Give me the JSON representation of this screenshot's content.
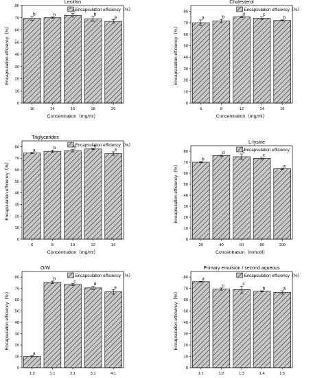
{
  "figure": {
    "colors": {
      "bar_fill": "#c9c9c9",
      "hatch": "#4d4d4d",
      "axis": "#000000"
    },
    "legend_label": "Encapsulation efficiency（%）"
  },
  "chart_data": [
    {
      "type": "bar",
      "title": "Lecithin",
      "xlabel": "Concentration（mg/ml）",
      "ylabel": "Encapsulation efficiency（%）",
      "categories": [
        "10",
        "14",
        "16",
        "18",
        "20"
      ],
      "values": [
        69.5,
        70,
        72,
        69,
        67
      ],
      "errors": [
        1.5,
        0.5,
        1.5,
        2,
        1.5
      ],
      "labels": [
        "b",
        "b",
        "c",
        "b",
        "a"
      ],
      "ylim": [
        0,
        80
      ],
      "yticks": [
        0,
        10,
        20,
        30,
        40,
        50,
        60,
        70,
        80
      ],
      "legend": "Encapsulation efficiency（%）"
    },
    {
      "type": "bar",
      "title": "Cholesterol",
      "xlabel": "Concentration（mg/ml）",
      "ylabel": "Encapsulation efficiency（%）",
      "categories": [
        "6",
        "8",
        "12",
        "14",
        "16"
      ],
      "values": [
        70,
        71.5,
        75,
        74,
        72
      ],
      "errors": [
        2.5,
        1.5,
        0.5,
        1,
        0.5
      ],
      "labels": [
        "a",
        "b",
        "d",
        "c",
        "b"
      ],
      "ylim": [
        0,
        85
      ],
      "yticks": [
        0,
        10,
        20,
        30,
        40,
        50,
        60,
        70,
        80
      ],
      "legend": "Encapsulation efficiency（%）"
    },
    {
      "type": "bar",
      "title": "Triglycerides",
      "xlabel": "Concentration（mg/ml）",
      "ylabel": "Encapsulation efficiency（%）",
      "categories": [
        "6",
        "8",
        "10",
        "12",
        "16"
      ],
      "values": [
        74.5,
        76,
        76.5,
        78,
        74
      ],
      "errors": [
        0.5,
        1,
        1,
        0.5,
        1.5
      ],
      "labels": [
        "a",
        "b",
        "b",
        "c",
        "a"
      ],
      "ylim": [
        0,
        85
      ],
      "yticks": [
        0,
        10,
        20,
        30,
        40,
        50,
        60,
        70,
        80
      ],
      "legend": "Encapsulation efficiency（%）"
    },
    {
      "type": "bar",
      "title": "L-lysine",
      "xlabel": "Concentration（mmol/l）",
      "ylabel": "Encapsulation efficiency（%）",
      "categories": [
        "20",
        "40",
        "60",
        "80",
        "100"
      ],
      "values": [
        70,
        76,
        75,
        73.5,
        64
      ],
      "errors": [
        0.5,
        0.5,
        2.5,
        1,
        0.5
      ],
      "labels": [
        "b",
        "d",
        "c",
        "c",
        "a"
      ],
      "ylim": [
        0,
        85
      ],
      "yticks": [
        0,
        10,
        20,
        30,
        40,
        50,
        60,
        70,
        80
      ],
      "legend": "Encapsulation efficiency"
    },
    {
      "type": "bar",
      "title": "O/W",
      "xlabel": "Ratio",
      "ylabel": "Encapsulation efficiency（%）",
      "categories": [
        "1:2",
        "1:1",
        "2:1",
        "3:1",
        "4:1"
      ],
      "values": [
        10,
        75.5,
        73.5,
        70.5,
        67
      ],
      "errors": [
        0.5,
        1,
        1,
        1.5,
        2
      ],
      "labels": [
        "a",
        "b",
        "c",
        "d",
        "e"
      ],
      "ylim": [
        0,
        85
      ],
      "yticks": [
        0,
        10,
        20,
        30,
        40,
        50,
        60,
        70,
        80
      ],
      "legend": "Encapsulation efficiency（%）"
    },
    {
      "type": "bar",
      "title": "Primary emulsion / second aqueous",
      "xlabel": "Primary emulsion/second aqueous solution",
      "ylabel": "Encapsulation efficiency（%）",
      "categories": [
        "1:1",
        "1:2",
        "1:3",
        "1:4",
        "1:5"
      ],
      "values": [
        76,
        69.5,
        69,
        67.5,
        66.5
      ],
      "errors": [
        0.3,
        1,
        3,
        0.5,
        1.5
      ],
      "labels": [
        "d",
        "c",
        "c",
        "b",
        "a"
      ],
      "ylim": [
        0,
        85
      ],
      "yticks": [
        0,
        10,
        20,
        30,
        40,
        50,
        60,
        70,
        80
      ],
      "legend": "Encapsulation efficiency（%）"
    }
  ]
}
